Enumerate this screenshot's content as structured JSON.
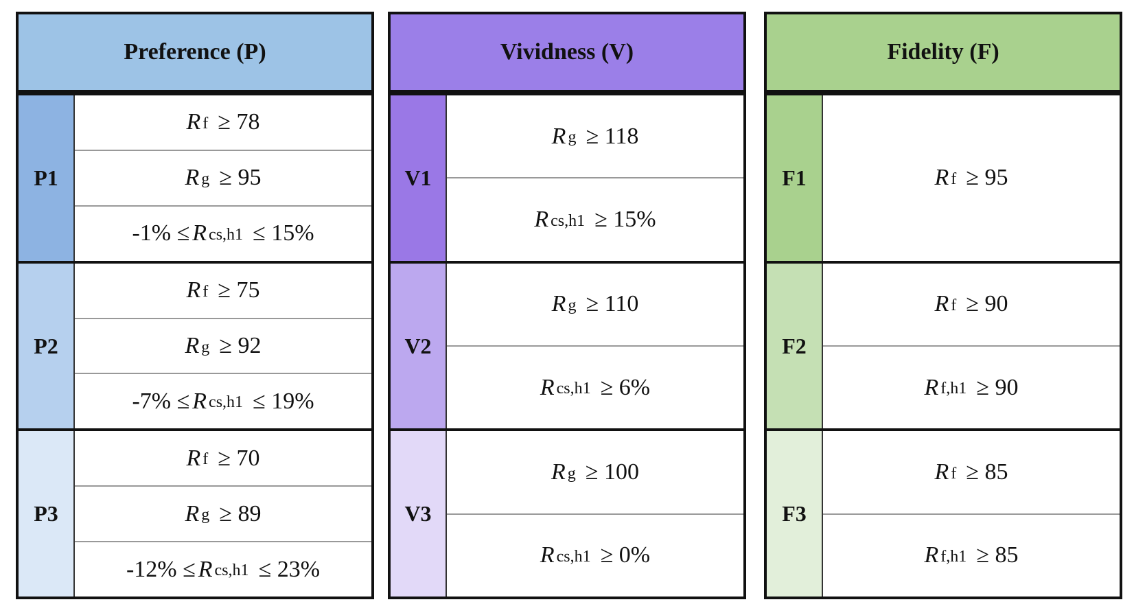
{
  "panels": [
    {
      "title": "Preference (P)",
      "groups": [
        {
          "label": "P1",
          "conditions": [
            {
              "var": "R",
              "sub": "f",
              "post": "≥ 78"
            },
            {
              "var": "R",
              "sub": "g",
              "post": "≥ 95"
            },
            {
              "pre": "-1% ≤",
              "var": "R",
              "sub": "cs,h1",
              "post": "≤ 15%"
            }
          ]
        },
        {
          "label": "P2",
          "conditions": [
            {
              "var": "R",
              "sub": "f",
              "post": "≥ 75"
            },
            {
              "var": "R",
              "sub": "g",
              "post": "≥ 92"
            },
            {
              "pre": "-7% ≤",
              "var": "R",
              "sub": "cs,h1",
              "post": "≤ 19%"
            }
          ]
        },
        {
          "label": "P3",
          "conditions": [
            {
              "var": "R",
              "sub": "f",
              "post": "≥ 70"
            },
            {
              "var": "R",
              "sub": "g",
              "post": "≥ 89"
            },
            {
              "pre": "-12% ≤",
              "var": "R",
              "sub": "cs,h1",
              "post": "≤ 23%"
            }
          ]
        }
      ]
    },
    {
      "title": "Vividness (V)",
      "groups": [
        {
          "label": "V1",
          "conditions": [
            {
              "var": "R",
              "sub": "g",
              "post": "≥ 118"
            },
            {
              "var": "R",
              "sub": "cs,h1",
              "post": "≥ 15%"
            }
          ]
        },
        {
          "label": "V2",
          "conditions": [
            {
              "var": "R",
              "sub": "g",
              "post": "≥ 110"
            },
            {
              "var": "R",
              "sub": "cs,h1",
              "post": "≥ 6%"
            }
          ]
        },
        {
          "label": "V3",
          "conditions": [
            {
              "var": "R",
              "sub": "g",
              "post": "≥ 100"
            },
            {
              "var": "R",
              "sub": "cs,h1",
              "post": "≥ 0%"
            }
          ]
        }
      ]
    },
    {
      "title": "Fidelity (F)",
      "groups": [
        {
          "label": "F1",
          "conditions": [
            {
              "var": "R",
              "sub": "f",
              "post": "≥ 95"
            }
          ]
        },
        {
          "label": "F2",
          "conditions": [
            {
              "var": "R",
              "sub": "f",
              "post": "≥ 90"
            },
            {
              "var": "R",
              "sub": "f,h1",
              "post": "≥ 90"
            }
          ]
        },
        {
          "label": "F3",
          "conditions": [
            {
              "var": "R",
              "sub": "f",
              "post": "≥ 85"
            },
            {
              "var": "R",
              "sub": "f,h1",
              "post": "≥ 85"
            }
          ]
        }
      ]
    }
  ]
}
